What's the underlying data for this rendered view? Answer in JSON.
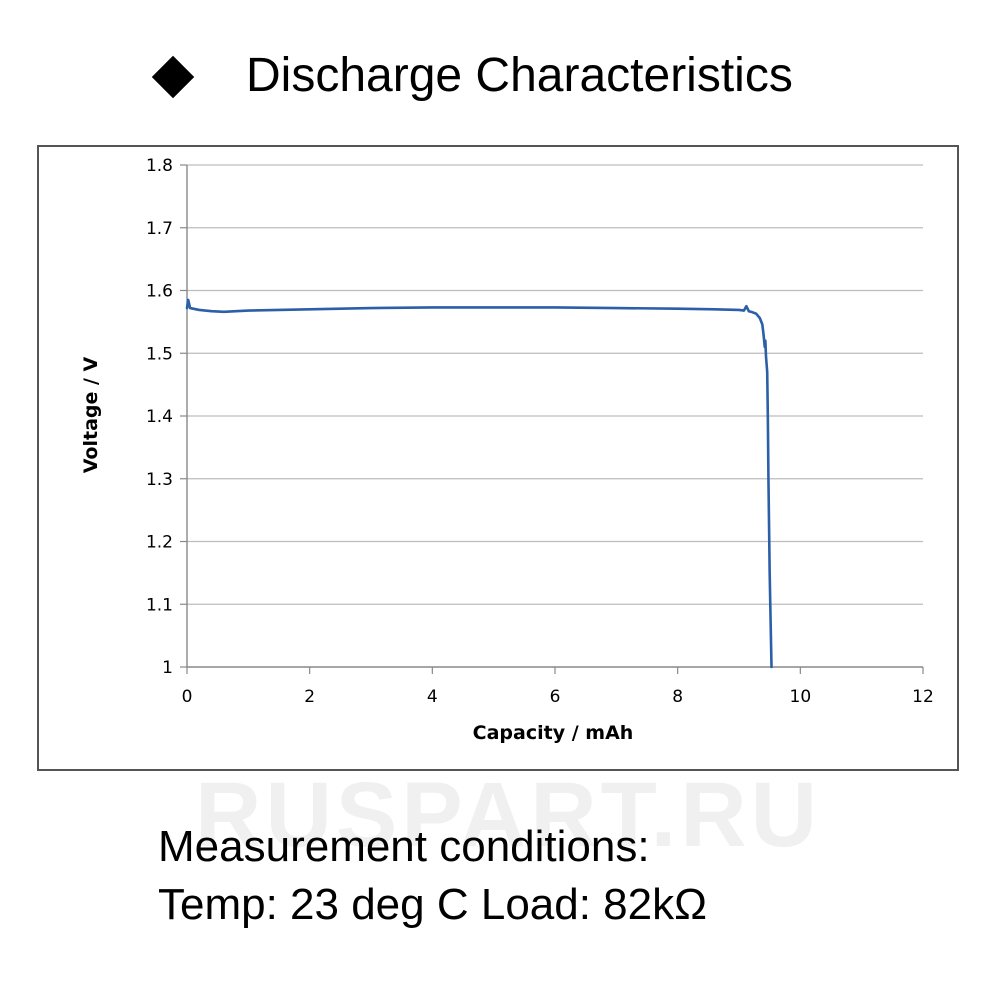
{
  "header": {
    "title": "Discharge Characteristics",
    "bullet_icon": "diamond-icon"
  },
  "watermark": "RUSPART.RU",
  "conditions": {
    "line1": "Measurement conditions:",
    "line2": "Temp: 23 deg C   Load: 82kΩ"
  },
  "chart_data": {
    "type": "line",
    "title": "",
    "xlabel": "Capacity  /  mAh",
    "ylabel": "Voltage  /  V",
    "xlim": [
      0,
      12
    ],
    "ylim": [
      1,
      1.8
    ],
    "xticks": [
      "0",
      "2",
      "4",
      "6",
      "8",
      "10",
      "12"
    ],
    "yticks": [
      "1",
      "1.1",
      "1.2",
      "1.3",
      "1.4",
      "1.5",
      "1.6",
      "1.7",
      "1.8"
    ],
    "grid": "horizontal",
    "line_color": "#2b5fa8",
    "series": [
      {
        "x": [
          0,
          0.02,
          0.05,
          0.2,
          0.4,
          0.6,
          0.8,
          1.0,
          1.5,
          2.0,
          3.0,
          4.0,
          5.0,
          6.0,
          7.0,
          8.0,
          8.6,
          9.0,
          9.08,
          9.12,
          9.16,
          9.2,
          9.28,
          9.34,
          9.38,
          9.4,
          9.42,
          9.43,
          9.44,
          9.46,
          9.47,
          9.48,
          9.5,
          9.52,
          9.53
        ],
        "y": [
          1.572,
          1.585,
          1.572,
          1.569,
          1.567,
          1.566,
          1.567,
          1.568,
          1.569,
          1.57,
          1.572,
          1.573,
          1.573,
          1.573,
          1.572,
          1.571,
          1.57,
          1.569,
          1.568,
          1.575,
          1.567,
          1.566,
          1.563,
          1.556,
          1.546,
          1.53,
          1.51,
          1.52,
          1.495,
          1.47,
          1.4,
          1.3,
          1.15,
          1.05,
          1.0
        ]
      }
    ]
  }
}
